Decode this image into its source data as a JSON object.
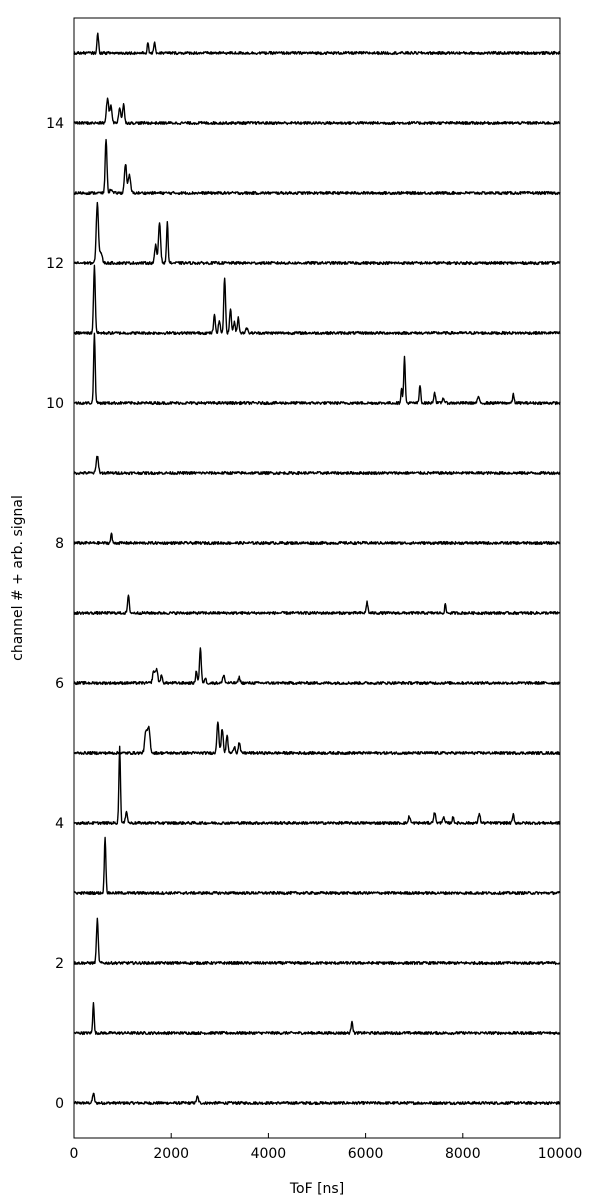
{
  "chart_data": {
    "type": "line",
    "xlabel": "ToF [ns]",
    "ylabel": "channel # + arb. signal",
    "xlim": [
      0,
      10000
    ],
    "ylim": [
      -0.5,
      15.5
    ],
    "xticks": [
      0,
      2000,
      4000,
      6000,
      8000,
      10000
    ],
    "yticks": [
      0,
      2,
      4,
      6,
      8,
      10,
      12,
      14
    ],
    "grid": false,
    "line_color": "#000000",
    "baseline_noise": 0.02,
    "series": [
      {
        "channel": 0,
        "peaks": [
          [
            400,
            0.14,
            18
          ],
          [
            2540,
            0.09,
            20
          ]
        ]
      },
      {
        "channel": 1,
        "peaks": [
          [
            400,
            0.45,
            14
          ],
          [
            5720,
            0.18,
            16
          ]
        ]
      },
      {
        "channel": 2,
        "peaks": [
          [
            480,
            0.62,
            18
          ]
        ]
      },
      {
        "channel": 3,
        "peaks": [
          [
            640,
            0.8,
            16
          ]
        ]
      },
      {
        "channel": 4,
        "peaks": [
          [
            940,
            1.08,
            16
          ],
          [
            1080,
            0.18,
            18
          ],
          [
            6900,
            0.1,
            18
          ],
          [
            7420,
            0.14,
            22
          ],
          [
            7600,
            0.08,
            20
          ],
          [
            7800,
            0.08,
            18
          ],
          [
            8340,
            0.14,
            18
          ],
          [
            9040,
            0.12,
            16
          ]
        ]
      },
      {
        "channel": 5,
        "peaks": [
          [
            1480,
            0.3,
            25
          ],
          [
            1540,
            0.35,
            25
          ],
          [
            2960,
            0.46,
            20
          ],
          [
            3050,
            0.35,
            20
          ],
          [
            3150,
            0.25,
            18
          ],
          [
            3300,
            0.1,
            18
          ],
          [
            3400,
            0.15,
            18
          ]
        ]
      },
      {
        "channel": 6,
        "peaks": [
          [
            1640,
            0.17,
            22
          ],
          [
            1700,
            0.2,
            22
          ],
          [
            1800,
            0.1,
            20
          ],
          [
            2520,
            0.18,
            16
          ],
          [
            2600,
            0.5,
            18
          ],
          [
            2700,
            0.07,
            18
          ],
          [
            3080,
            0.12,
            18
          ],
          [
            3400,
            0.08,
            18
          ]
        ]
      },
      {
        "channel": 7,
        "peaks": [
          [
            1120,
            0.24,
            18
          ],
          [
            6030,
            0.16,
            16
          ],
          [
            7640,
            0.12,
            14
          ]
        ]
      },
      {
        "channel": 8,
        "peaks": [
          [
            770,
            0.14,
            14
          ]
        ]
      },
      {
        "channel": 9,
        "peaks": [
          [
            480,
            0.25,
            22
          ]
        ]
      },
      {
        "channel": 10,
        "peaks": [
          [
            420,
            1.0,
            16
          ],
          [
            6740,
            0.22,
            14
          ],
          [
            6800,
            0.65,
            16
          ],
          [
            7120,
            0.25,
            16
          ],
          [
            7420,
            0.15,
            18
          ],
          [
            7600,
            0.07,
            20
          ],
          [
            8320,
            0.1,
            16
          ],
          [
            9040,
            0.12,
            16
          ]
        ]
      },
      {
        "channel": 11,
        "peaks": [
          [
            420,
            0.95,
            18
          ],
          [
            2890,
            0.25,
            18
          ],
          [
            2990,
            0.18,
            18
          ],
          [
            3100,
            0.8,
            18
          ],
          [
            3220,
            0.35,
            18
          ],
          [
            3300,
            0.15,
            18
          ],
          [
            3380,
            0.22,
            18
          ],
          [
            3550,
            0.08,
            20
          ]
        ]
      },
      {
        "channel": 12,
        "peaks": [
          [
            480,
            0.85,
            22
          ],
          [
            550,
            0.15,
            28
          ],
          [
            1680,
            0.25,
            20
          ],
          [
            1760,
            0.58,
            22
          ],
          [
            1920,
            0.58,
            16
          ]
        ]
      },
      {
        "channel": 13,
        "peaks": [
          [
            660,
            0.78,
            18
          ],
          [
            760,
            0.06,
            20
          ],
          [
            1060,
            0.42,
            22
          ],
          [
            1140,
            0.25,
            24
          ]
        ]
      },
      {
        "channel": 14,
        "peaks": [
          [
            690,
            0.35,
            22
          ],
          [
            760,
            0.25,
            22
          ],
          [
            940,
            0.22,
            22
          ],
          [
            1020,
            0.26,
            20
          ]
        ]
      },
      {
        "channel": 15,
        "peaks": [
          [
            490,
            0.28,
            16
          ],
          [
            1520,
            0.14,
            14
          ],
          [
            1660,
            0.17,
            14
          ]
        ]
      }
    ]
  }
}
